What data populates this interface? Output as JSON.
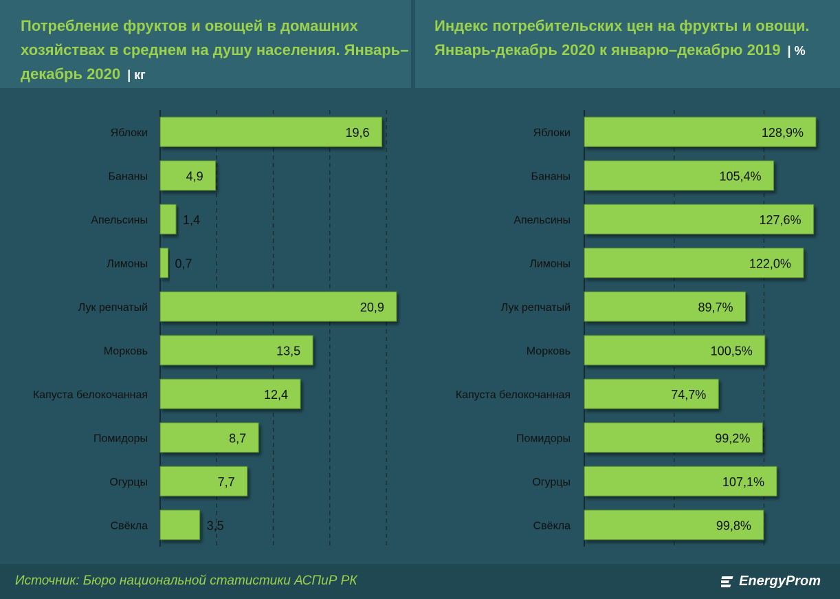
{
  "colors": {
    "background": "#25525e",
    "header_panel": "#2f6470",
    "bar_fill": "#92d050",
    "bar_stroke": "#5a8a2a",
    "title": "#9bd14c",
    "text": "#111111",
    "grid": "#1a2a30"
  },
  "left": {
    "title": "Потребление фруктов и овощей в домашних хозяйствах в среднем на душу населения. Январь–декабрь 2020",
    "unit": "| кг"
  },
  "right": {
    "title": "Индекс потребительских цен на фрукты и овощи. Январь-декабрь 2020 к январю–декабрю 2019",
    "unit": "| %"
  },
  "chart_data": [
    {
      "type": "bar",
      "orientation": "horizontal",
      "categories": [
        "Яблоки",
        "Бананы",
        "Апельсины",
        "Лимоны",
        "Лук репчатый",
        "Морковь",
        "Капуста белокочанная",
        "Помидоры",
        "Огурцы",
        "Свёкла"
      ],
      "values": [
        19.6,
        4.9,
        1.4,
        0.7,
        20.9,
        13.5,
        12.4,
        8.7,
        7.7,
        3.5
      ],
      "labels": [
        "19,6",
        "4,9",
        "1,4",
        "0,7",
        "20,9",
        "13,5",
        "12,4",
        "8,7",
        "7,7",
        "3,5"
      ],
      "xlim": [
        0,
        22
      ],
      "grid": true,
      "grid_step": 5
    },
    {
      "type": "bar",
      "orientation": "horizontal",
      "categories": [
        "Яблоки",
        "Бананы",
        "Апельсины",
        "Лимоны",
        "Лук репчатый",
        "Морковь",
        "Капуста белокочанная",
        "Помидоры",
        "Огурцы",
        "Свёкла"
      ],
      "values": [
        128.9,
        105.4,
        127.6,
        122.0,
        89.7,
        100.5,
        74.7,
        99.2,
        107.1,
        99.8
      ],
      "labels": [
        "128,9%",
        "105,4%",
        "127,6%",
        "122,0%",
        "89,7%",
        "100,5%",
        "74,7%",
        "99,2%",
        "107,1%",
        "99,8%"
      ],
      "xlim": [
        0,
        140
      ],
      "grid": true,
      "grid_step": 50
    }
  ],
  "footer": {
    "source": "Источник: Бюро национальной  статистики АСПиР РК",
    "brand": "EnergyProm"
  }
}
